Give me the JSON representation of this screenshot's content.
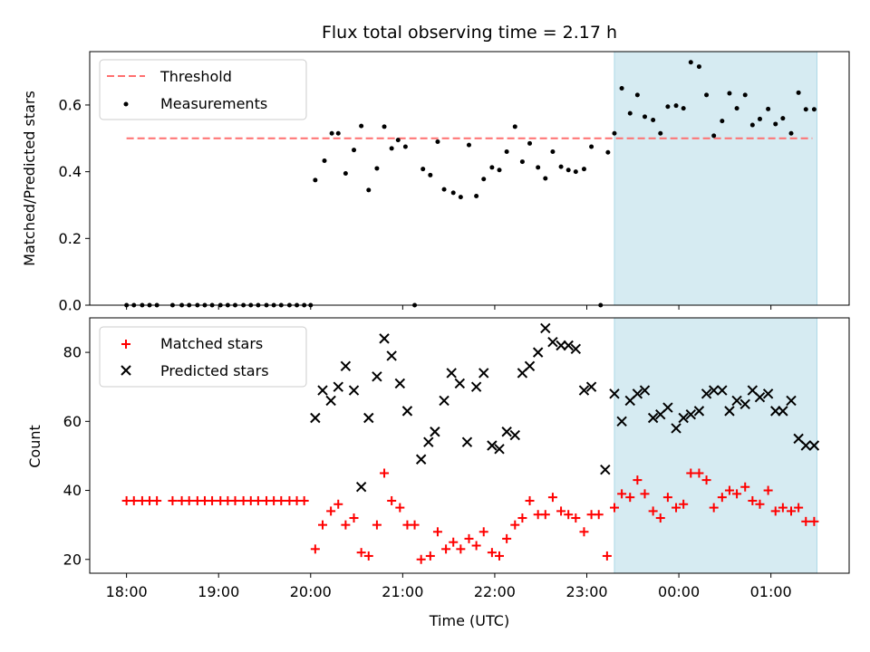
{
  "chart_data": {
    "type": "scatter",
    "title": "Flux total observing time = 2.17 h",
    "xlabel": "Time (UTC)",
    "x_ticks": [
      "18:00",
      "19:00",
      "20:00",
      "21:00",
      "22:00",
      "23:00",
      "00:00",
      "01:00"
    ],
    "x_tick_hours": [
      18,
      19,
      20,
      21,
      22,
      23,
      24,
      25
    ],
    "xlim": [
      17.6,
      25.85
    ],
    "shaded_region": {
      "x": [
        23.3,
        25.5
      ],
      "color": "#add8e6"
    },
    "top": {
      "ylabel": "Matched/Predicted stars",
      "ylim": [
        0,
        0.76
      ],
      "y_ticks": [
        0.0,
        0.2,
        0.4,
        0.6
      ],
      "threshold": {
        "name": "Threshold",
        "value": 0.5,
        "x_range": [
          18.0,
          25.45
        ],
        "color": "#ff6f6f"
      },
      "legend": [
        "Threshold",
        "Measurements"
      ],
      "legend_position": "upper-left",
      "series": [
        {
          "name": "Measurements",
          "color": "#000000",
          "x": [
            18.0,
            18.08,
            18.17,
            18.25,
            18.33,
            18.5,
            18.6,
            18.68,
            18.77,
            18.85,
            18.93,
            19.02,
            19.1,
            19.18,
            19.27,
            19.35,
            19.43,
            19.52,
            19.6,
            19.68,
            19.77,
            19.85,
            19.93,
            20.0,
            20.05,
            20.15,
            20.23,
            20.3,
            20.38,
            20.47,
            20.55,
            20.63,
            20.72,
            20.8,
            20.88,
            20.95,
            21.03,
            21.13,
            21.22,
            21.3,
            21.38,
            21.45,
            21.55,
            21.63,
            21.72,
            21.8,
            21.88,
            21.97,
            22.05,
            22.13,
            22.22,
            22.3,
            22.38,
            22.47,
            22.55,
            22.63,
            22.72,
            22.8,
            22.88,
            22.97,
            23.05,
            23.15,
            23.23,
            23.3,
            23.38,
            23.47,
            23.55,
            23.63,
            23.72,
            23.8,
            23.88,
            23.97,
            24.05,
            24.13,
            24.22,
            24.3,
            24.38,
            24.47,
            24.55,
            24.63,
            24.72,
            24.8,
            24.88,
            24.97,
            25.05,
            25.13,
            25.22,
            25.3,
            25.38,
            25.47
          ],
          "y": [
            0,
            0,
            0,
            0,
            0,
            0,
            0,
            0,
            0,
            0,
            0,
            0,
            0,
            0,
            0,
            0,
            0,
            0,
            0,
            0,
            0,
            0,
            0,
            0,
            0.375,
            0.433,
            0.515,
            0.515,
            0.395,
            0.465,
            0.537,
            0.345,
            0.41,
            0.535,
            0.47,
            0.495,
            0.475,
            0,
            0.408,
            0.39,
            0.49,
            0.347,
            0.337,
            0.324,
            0.48,
            0.327,
            0.378,
            0.413,
            0.405,
            0.46,
            0.535,
            0.43,
            0.485,
            0.413,
            0.38,
            0.46,
            0.415,
            0.405,
            0.4,
            0.408,
            0.475,
            0,
            0.458,
            0.515,
            0.65,
            0.575,
            0.63,
            0.565,
            0.555,
            0.515,
            0.595,
            0.598,
            0.59,
            0.728,
            0.715,
            0.63,
            0.508,
            0.552,
            0.635,
            0.59,
            0.63,
            0.54,
            0.558,
            0.588,
            0.543,
            0.56,
            0.515,
            0.637,
            0.587,
            0.587
          ]
        }
      ]
    },
    "bottom": {
      "ylabel": "Count",
      "ylim": [
        16,
        90
      ],
      "y_ticks": [
        20,
        40,
        60,
        80
      ],
      "legend": [
        "Matched stars",
        "Predicted stars"
      ],
      "legend_position": "upper-left",
      "series": [
        {
          "name": "Matched stars",
          "marker": "+",
          "color": "#ff0000",
          "x": [
            18.0,
            18.08,
            18.17,
            18.25,
            18.33,
            18.5,
            18.6,
            18.68,
            18.77,
            18.85,
            18.93,
            19.02,
            19.1,
            19.18,
            19.27,
            19.35,
            19.43,
            19.52,
            19.6,
            19.68,
            19.77,
            19.85,
            19.93,
            20.05,
            20.13,
            20.22,
            20.3,
            20.38,
            20.47,
            20.55,
            20.63,
            20.72,
            20.8,
            20.88,
            20.97,
            21.05,
            21.13,
            21.2,
            21.3,
            21.38,
            21.47,
            21.55,
            21.63,
            21.72,
            21.8,
            21.88,
            21.97,
            22.05,
            22.13,
            22.22,
            22.3,
            22.38,
            22.47,
            22.55,
            22.63,
            22.72,
            22.8,
            22.88,
            22.97,
            23.05,
            23.13,
            23.22,
            23.3,
            23.38,
            23.47,
            23.55,
            23.63,
            23.72,
            23.8,
            23.88,
            23.97,
            24.05,
            24.13,
            24.22,
            24.3,
            24.38,
            24.47,
            24.55,
            24.63,
            24.72,
            24.8,
            24.88,
            24.97,
            25.05,
            25.13,
            25.22,
            25.3,
            25.38,
            25.47
          ],
          "y": [
            37,
            37,
            37,
            37,
            37,
            37,
            37,
            37,
            37,
            37,
            37,
            37,
            37,
            37,
            37,
            37,
            37,
            37,
            37,
            37,
            37,
            37,
            37,
            23,
            30,
            34,
            36,
            30,
            32,
            22,
            21,
            30,
            45,
            37,
            35,
            30,
            30,
            20,
            21,
            28,
            23,
            25,
            23,
            26,
            24,
            28,
            22,
            21,
            26,
            30,
            32,
            37,
            33,
            33,
            38,
            34,
            33,
            32,
            28,
            33,
            33,
            21,
            35,
            39,
            38,
            43,
            39,
            34,
            32,
            38,
            35,
            36,
            45,
            45,
            43,
            35,
            38,
            40,
            39,
            41,
            37,
            36,
            40,
            34,
            35,
            34,
            35,
            31,
            31
          ]
        },
        {
          "name": "Predicted stars",
          "marker": "x",
          "color": "#000000",
          "x": [
            20.05,
            20.13,
            20.22,
            20.3,
            20.38,
            20.47,
            20.55,
            20.63,
            20.72,
            20.8,
            20.88,
            20.97,
            21.05,
            21.2,
            21.28,
            21.35,
            21.45,
            21.53,
            21.62,
            21.7,
            21.8,
            21.88,
            21.97,
            22.05,
            22.13,
            22.22,
            22.3,
            22.38,
            22.47,
            22.55,
            22.63,
            22.72,
            22.8,
            22.88,
            22.97,
            23.05,
            23.2,
            23.3,
            23.38,
            23.47,
            23.55,
            23.63,
            23.72,
            23.8,
            23.88,
            23.97,
            24.05,
            24.13,
            24.22,
            24.3,
            24.38,
            24.47,
            24.55,
            24.63,
            24.72,
            24.8,
            24.88,
            24.97,
            25.05,
            25.13,
            25.22,
            25.3,
            25.38,
            25.47
          ],
          "y": [
            61,
            69,
            66,
            70,
            76,
            69,
            41,
            61,
            73,
            84,
            79,
            71,
            63,
            49,
            54,
            57,
            66,
            74,
            71,
            54,
            70,
            74,
            53,
            52,
            57,
            56,
            74,
            76,
            80,
            87,
            83,
            82,
            82,
            81,
            69,
            70,
            46,
            68,
            60,
            66,
            68,
            69,
            61,
            62,
            64,
            58,
            61,
            62,
            63,
            68,
            69,
            69,
            63,
            66,
            65,
            69,
            67,
            68,
            63,
            63,
            66,
            55,
            53,
            53
          ]
        }
      ]
    }
  }
}
